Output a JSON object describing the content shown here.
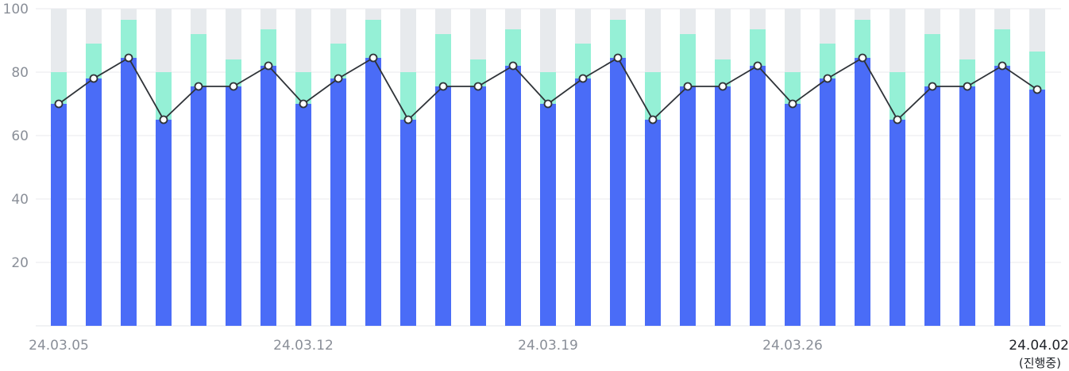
{
  "chart_data": {
    "type": "bar",
    "stacked": true,
    "ylim": [
      0,
      100
    ],
    "y_ticks": [
      20,
      40,
      60,
      80,
      100
    ],
    "grid": true,
    "x_tick_labels": [
      {
        "index": 0,
        "label": "24.03.05"
      },
      {
        "index": 7,
        "label": "24.03.12"
      },
      {
        "index": 14,
        "label": "24.03.19"
      },
      {
        "index": 21,
        "label": "24.03.26"
      },
      {
        "index": 28,
        "label": "24.04.02",
        "note": "(진행중)"
      }
    ],
    "series": [
      {
        "color": "#4a6cf7",
        "values": [
          70,
          78,
          84.5,
          65,
          75.5,
          75.5,
          82,
          70,
          78,
          84.5,
          65,
          75.5,
          75.5,
          82,
          70,
          78,
          84.5,
          65,
          75.5,
          75.5,
          82,
          70,
          78,
          84.5,
          65,
          75.5,
          75.5,
          82,
          74.5
        ]
      },
      {
        "color": "#95f0d6",
        "values": [
          10,
          11,
          12,
          15,
          16.5,
          8.5,
          11.5,
          10,
          11,
          12,
          15,
          16.5,
          8.5,
          11.5,
          10,
          11,
          12,
          15,
          16.5,
          8.5,
          11.5,
          10,
          11,
          12,
          15,
          16.5,
          8.5,
          11.5,
          12
        ]
      },
      {
        "color": "#e7eaed",
        "values": [
          20,
          11,
          3.5,
          20,
          8,
          16,
          6.5,
          20,
          11,
          3.5,
          20,
          8,
          16,
          6.5,
          20,
          11,
          3.5,
          20,
          8,
          16,
          6.5,
          20,
          11,
          3.5,
          20,
          8,
          16,
          6.5,
          13.5
        ]
      }
    ],
    "line": {
      "color": "#2f3338",
      "values": [
        70,
        78,
        84.5,
        65,
        75.5,
        75.5,
        82,
        70,
        78,
        84.5,
        65,
        75.5,
        75.5,
        82,
        70,
        78,
        84.5,
        65,
        75.5,
        75.5,
        82,
        70,
        78,
        84.5,
        65,
        75.5,
        75.5,
        82,
        74.5
      ]
    }
  }
}
